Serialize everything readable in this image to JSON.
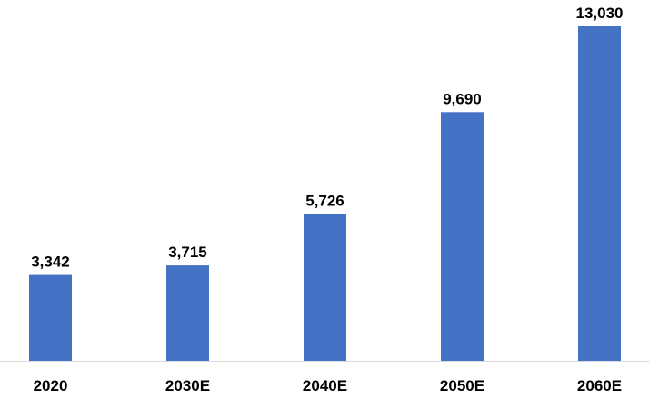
{
  "chart_data": {
    "type": "bar",
    "categories": [
      "2020",
      "2030E",
      "2040E",
      "2050E",
      "2060E"
    ],
    "values": [
      3342,
      3715,
      5726,
      9690,
      13030
    ],
    "value_labels": [
      "3,342",
      "3,715",
      "5,726",
      "9,690",
      "13,030"
    ],
    "title": "",
    "xlabel": "",
    "ylabel": "",
    "ylim": [
      0,
      14000
    ],
    "grid": false,
    "legend": "none",
    "bar_color": "#4472C4"
  }
}
